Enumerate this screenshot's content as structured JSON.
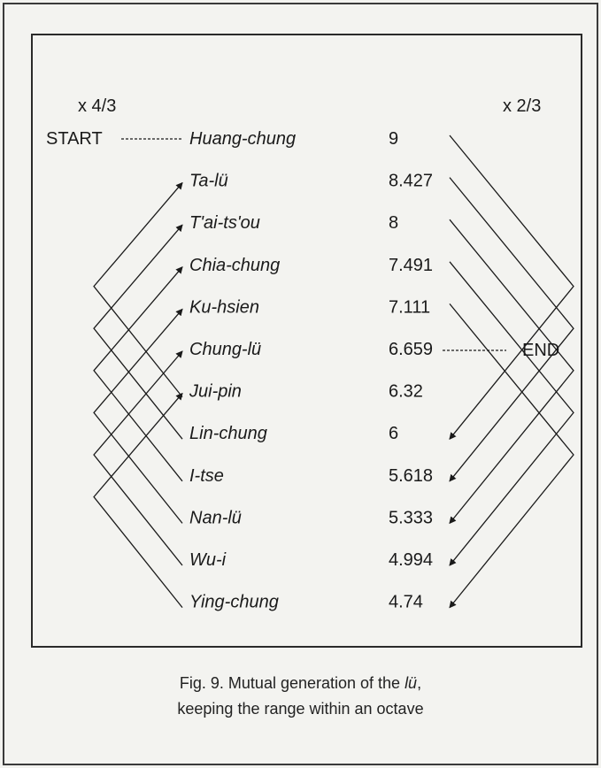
{
  "diagram": {
    "label_left_multiplier": "x 4/3",
    "label_right_multiplier": "x 2/3",
    "start_label": "START",
    "end_label": "END",
    "notes": [
      {
        "name": "Huang-chung",
        "value": "9"
      },
      {
        "name": "Ta-lü",
        "value": "8.427"
      },
      {
        "name": "T'ai-ts'ou",
        "value": "8"
      },
      {
        "name": "Chia-chung",
        "value": "7.491"
      },
      {
        "name": "Ku-hsien",
        "value": "7.111"
      },
      {
        "name": "Chung-lü",
        "value": "6.659"
      },
      {
        "name": "Jui-pin",
        "value": "6.32"
      },
      {
        "name": "Lin-chung",
        "value": "6"
      },
      {
        "name": "I-tse",
        "value": "5.618"
      },
      {
        "name": "Nan-lü",
        "value": "5.333"
      },
      {
        "name": "Wu-i",
        "value": "4.994"
      },
      {
        "name": "Ying-chung",
        "value": "4.74"
      }
    ],
    "generation_sequence": [
      "Huang-chung",
      "Lin-chung",
      "T'ai-ts'ou",
      "Nan-lü",
      "Ku-hsien",
      "Ying-chung",
      "Jui-pin",
      "Ta-lü",
      "I-tse",
      "Chia-chung",
      "Wu-i",
      "Chung-lü"
    ]
  },
  "caption": {
    "line1_prefix": "Fig. 9. Mutual generation of the ",
    "line1_term": "lü",
    "line1_suffix": ",",
    "line2": "keeping the range within an octave"
  }
}
